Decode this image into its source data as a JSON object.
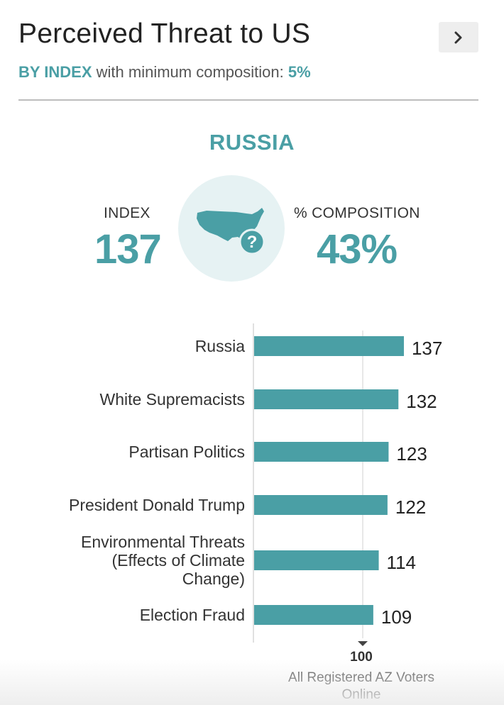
{
  "header": {
    "title": "Perceived Threat to US",
    "subtitle_mode": "BY INDEX",
    "subtitle_text": "with minimum composition:",
    "subtitle_min": "5%",
    "next_icon": "chevron-right-icon"
  },
  "summary": {
    "selected": "RUSSIA",
    "index_label": "INDEX",
    "index_value": "137",
    "composition_label": "% COMPOSITION",
    "composition_value": "43%",
    "center_icon": "us-map-question-icon"
  },
  "colors": {
    "accent": "#4a9fa5",
    "bar": "#4a9fa5",
    "circle_bg": "#e6f2f3",
    "baseline": "#e0e0e0"
  },
  "chart_data": {
    "type": "bar",
    "orientation": "horizontal",
    "categories": [
      [
        "Russia"
      ],
      [
        "White Supremacists"
      ],
      [
        "Partisan Politics"
      ],
      [
        "President Donald Trump"
      ],
      [
        "Environmental Threats",
        "(Effects of Climate",
        "Change)"
      ],
      [
        "Election Fraud"
      ]
    ],
    "values": [
      137,
      132,
      123,
      122,
      114,
      109
    ],
    "reference": {
      "value": 100,
      "label": "100",
      "caption": [
        "All Registered AZ Voters",
        "Online"
      ]
    }
  }
}
